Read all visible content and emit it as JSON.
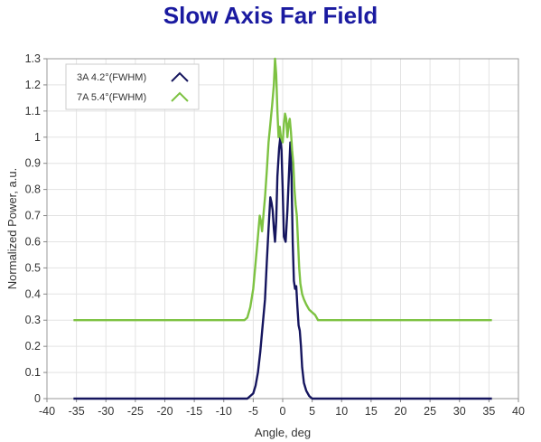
{
  "chart_data": {
    "type": "line",
    "title": "Slow Axis Far Field",
    "xlabel": "Angle, deg",
    "ylabel": "Normalized Power, a.u.",
    "xlim": [
      -40,
      40
    ],
    "ylim": [
      0,
      1.3
    ],
    "xticks": [
      "-40",
      "-35",
      "-30",
      "-25",
      "-20",
      "-15",
      "-10",
      "-5",
      "0",
      "5",
      "10",
      "15",
      "20",
      "25",
      "30",
      "35",
      "40"
    ],
    "yticks": [
      "0",
      "0.1",
      "0.2",
      "0.3",
      "0.4",
      "0.5",
      "0.6",
      "0.7",
      "0.8",
      "0.9",
      "1",
      "1.1",
      "1.2",
      "1.3"
    ],
    "grid": true,
    "legend_position": "top-left",
    "series": [
      {
        "name": "3A 4.2°(FWHM)",
        "color": "#15155e",
        "points": [
          [
            -35.5,
            0
          ],
          [
            -6,
            0
          ],
          [
            -5.5,
            0.01
          ],
          [
            -5,
            0.02
          ],
          [
            -4.6,
            0.05
          ],
          [
            -4.2,
            0.1
          ],
          [
            -3.8,
            0.18
          ],
          [
            -3.4,
            0.28
          ],
          [
            -3,
            0.38
          ],
          [
            -2.7,
            0.52
          ],
          [
            -2.4,
            0.65
          ],
          [
            -2.1,
            0.77
          ],
          [
            -1.9,
            0.75
          ],
          [
            -1.7,
            0.72
          ],
          [
            -1.5,
            0.65
          ],
          [
            -1.3,
            0.6
          ],
          [
            -1.1,
            0.68
          ],
          [
            -0.9,
            0.85
          ],
          [
            -0.6,
            0.96
          ],
          [
            -0.4,
            1.0
          ],
          [
            -0.2,
            0.95
          ],
          [
            0,
            0.8
          ],
          [
            0.2,
            0.62
          ],
          [
            0.5,
            0.6
          ],
          [
            0.8,
            0.72
          ],
          [
            1.1,
            0.88
          ],
          [
            1.3,
            0.98
          ],
          [
            1.5,
            0.85
          ],
          [
            1.7,
            0.6
          ],
          [
            1.9,
            0.45
          ],
          [
            2.1,
            0.42
          ],
          [
            2.3,
            0.43
          ],
          [
            2.5,
            0.35
          ],
          [
            2.7,
            0.28
          ],
          [
            2.9,
            0.26
          ],
          [
            3.1,
            0.2
          ],
          [
            3.3,
            0.12
          ],
          [
            3.6,
            0.06
          ],
          [
            4,
            0.03
          ],
          [
            4.5,
            0.01
          ],
          [
            5,
            0
          ],
          [
            35.5,
            0
          ]
        ]
      },
      {
        "name": "7A 5.4°(FWHM)",
        "color": "#7dc242",
        "points": [
          [
            -35.5,
            0.3
          ],
          [
            -6.5,
            0.3
          ],
          [
            -6,
            0.31
          ],
          [
            -5.5,
            0.35
          ],
          [
            -5,
            0.42
          ],
          [
            -4.6,
            0.52
          ],
          [
            -4.2,
            0.62
          ],
          [
            -3.9,
            0.7
          ],
          [
            -3.7,
            0.68
          ],
          [
            -3.5,
            0.64
          ],
          [
            -3.2,
            0.72
          ],
          [
            -3,
            0.77
          ],
          [
            -2.7,
            0.87
          ],
          [
            -2.4,
            0.98
          ],
          [
            -2.1,
            1.05
          ],
          [
            -1.8,
            1.12
          ],
          [
            -1.5,
            1.2
          ],
          [
            -1.3,
            1.3
          ],
          [
            -1.1,
            1.24
          ],
          [
            -0.9,
            1.1
          ],
          [
            -0.7,
            1.0
          ],
          [
            -0.5,
            1.04
          ],
          [
            -0.3,
            1.0
          ],
          [
            0,
            0.98
          ],
          [
            0.2,
            1.05
          ],
          [
            0.4,
            1.09
          ],
          [
            0.6,
            1.07
          ],
          [
            0.8,
            1.0
          ],
          [
            1,
            1.05
          ],
          [
            1.2,
            1.07
          ],
          [
            1.4,
            1.02
          ],
          [
            1.6,
            0.95
          ],
          [
            1.8,
            0.9
          ],
          [
            2,
            0.8
          ],
          [
            2.2,
            0.74
          ],
          [
            2.4,
            0.7
          ],
          [
            2.6,
            0.6
          ],
          [
            2.8,
            0.5
          ],
          [
            3,
            0.44
          ],
          [
            3.3,
            0.4
          ],
          [
            3.6,
            0.38
          ],
          [
            4,
            0.36
          ],
          [
            4.5,
            0.34
          ],
          [
            5,
            0.33
          ],
          [
            5.5,
            0.32
          ],
          [
            6,
            0.3
          ],
          [
            35.5,
            0.3
          ]
        ]
      }
    ]
  }
}
